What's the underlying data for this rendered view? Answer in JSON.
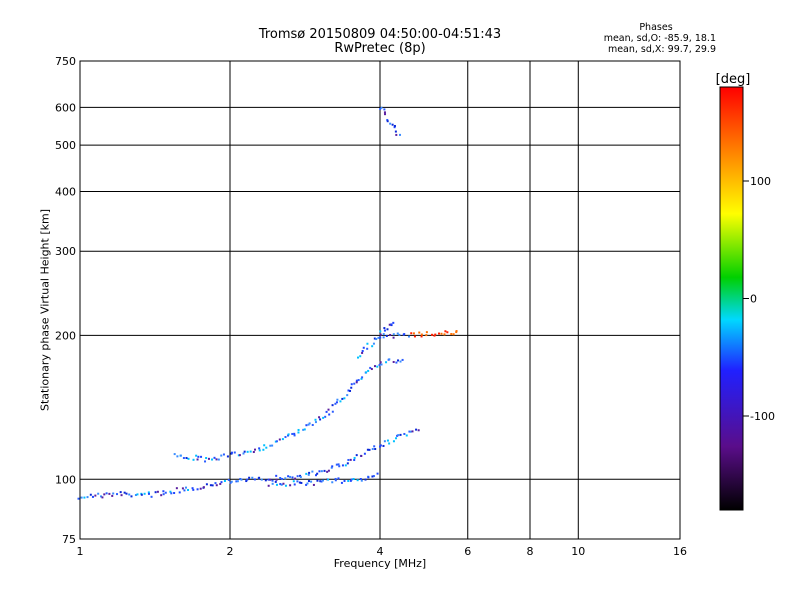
{
  "header": {
    "title_line1": "Tromsø 20150809 04:50:00-04:51:43",
    "title_line2": "RwPretec (8p)"
  },
  "stats": {
    "heading": "Phases",
    "line_o": "mean, sd,O: -85.9, 18.1",
    "line_x": "mean, sd,X:  99.7, 29.9"
  },
  "chart_data": {
    "type": "scatter",
    "title": "Tromsø 20150809 04:50:00-04:51:43",
    "subtitle": "RwPretec (8p)",
    "xlabel": "Frequency [MHz]",
    "ylabel": "Stationary phase Virtual Height [km]",
    "x_scale": "log",
    "y_scale": "log",
    "xlim": [
      1,
      16
    ],
    "ylim": [
      75,
      750
    ],
    "x_ticks": [
      1,
      2,
      4,
      6,
      8,
      10,
      16
    ],
    "x_tick_labels": [
      "1",
      "2",
      "4",
      "6",
      "8",
      "10",
      "16"
    ],
    "y_ticks": [
      75,
      100,
      200,
      300,
      400,
      500,
      600,
      750
    ],
    "y_tick_labels": [
      "75",
      "100",
      "200",
      "300",
      "400",
      "500",
      "600",
      "750"
    ],
    "grid": true,
    "colorbar": {
      "label": "[deg]",
      "range": [
        -180,
        180
      ],
      "ticks": [
        -100,
        0,
        100
      ],
      "tick_labels": [
        "-100",
        "0",
        "100"
      ]
    },
    "colors": {
      "o_mode": "#1e46ff",
      "x_mode": "#ff8000"
    },
    "series": [
      {
        "segments": [
          {
            "x": [
              1.0,
              1.2,
              1.4,
              1.6,
              1.8,
              2.0
            ],
            "y": [
              92,
              93,
              93,
              95,
              97,
              100
            ]
          },
          {
            "x": [
              1.55,
              1.8,
              2.0,
              2.3,
              2.6,
              2.9,
              3.2,
              3.5,
              3.8,
              4.0,
              4.5
            ],
            "y": [
              112,
              110,
              112,
              116,
              122,
              130,
              140,
              155,
              170,
              175,
              178
            ]
          },
          {
            "x": [
              2.0,
              2.3,
              2.6,
              3.0,
              3.4,
              3.8,
              4.2,
              4.8
            ],
            "y": [
              99,
              100,
              101,
              103,
              108,
              115,
              120,
              128
            ]
          },
          {
            "x": [
              2.4,
              2.8,
              3.2,
              3.6,
              4.0
            ],
            "y": [
              98,
              98,
              99,
              100,
              102
            ]
          },
          {
            "x": [
              3.6,
              3.8,
              4.0,
              4.3
            ],
            "y": [
              180,
              190,
              200,
              215
            ]
          },
          {
            "x": [
              4.0,
              4.6,
              5.3,
              5.8
            ],
            "y": [
              200,
              200,
              202,
              203
            ]
          },
          {
            "x": [
              4.0,
              4.2,
              4.4
            ],
            "y": [
              600,
              560,
              520
            ]
          }
        ]
      }
    ]
  }
}
